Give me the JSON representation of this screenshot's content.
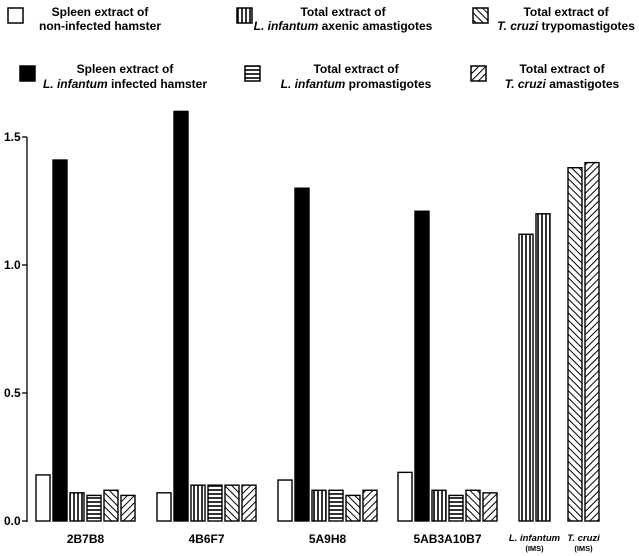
{
  "chart_data": {
    "type": "bar",
    "title": "",
    "xlabel": "",
    "ylabel": "",
    "ylim": [
      0,
      1.5
    ],
    "yticks": [
      "0.0",
      "0.5",
      "1.0",
      "1.5"
    ],
    "yticks_values": [
      0,
      0.5,
      1.0,
      1.5
    ],
    "grid": false,
    "legend_position": "top",
    "legend": [
      {
        "id": "s1",
        "pattern": "empty",
        "line1": "Spleen extract of",
        "line2_pre": "",
        "line2_italic": "",
        "line2_post": "non-infected hamster"
      },
      {
        "id": "s3",
        "pattern": "vertical",
        "line1": "Total extract of",
        "line2_pre": "",
        "line2_italic": "L. infantum",
        "line2_post": " axenic amastigotes"
      },
      {
        "id": "s5",
        "pattern": "backslash",
        "line1": "Total extract of",
        "line2_pre": "",
        "line2_italic": "T. cruzi",
        "line2_post": " trypomastigotes"
      },
      {
        "id": "s2",
        "pattern": "solid",
        "line1": "Spleen extract of",
        "line2_pre": "",
        "line2_italic": "L. infantum",
        "line2_post": " infected hamster"
      },
      {
        "id": "s4",
        "pattern": "horizontal",
        "line1": "Total extract of",
        "line2_pre": "",
        "line2_italic": "L. infantum",
        "line2_post": " promastigotes"
      },
      {
        "id": "s6",
        "pattern": "slash",
        "line1": "Total extract of",
        "line2_pre": "",
        "line2_italic": "T. cruzi",
        "line2_post": " amastigotes"
      }
    ],
    "groups": [
      {
        "label": "2B7B8",
        "bars": [
          {
            "series": "s1",
            "value": 0.18
          },
          {
            "series": "s2",
            "value": 1.41
          },
          {
            "series": "s3",
            "value": 0.11
          },
          {
            "series": "s4",
            "value": 0.1
          },
          {
            "series": "s5",
            "value": 0.12
          },
          {
            "series": "s6",
            "value": 0.1
          }
        ]
      },
      {
        "label": "4B6F7",
        "bars": [
          {
            "series": "s1",
            "value": 0.11
          },
          {
            "series": "s2",
            "value": 1.6
          },
          {
            "series": "s3",
            "value": 0.14
          },
          {
            "series": "s4",
            "value": 0.14
          },
          {
            "series": "s5",
            "value": 0.14
          },
          {
            "series": "s6",
            "value": 0.14
          }
        ]
      },
      {
        "label": "5A9H8",
        "bars": [
          {
            "series": "s1",
            "value": 0.16
          },
          {
            "series": "s2",
            "value": 1.3
          },
          {
            "series": "s3",
            "value": 0.12
          },
          {
            "series": "s4",
            "value": 0.12
          },
          {
            "series": "s5",
            "value": 0.1
          },
          {
            "series": "s6",
            "value": 0.12
          }
        ]
      },
      {
        "label": "5AB3A10B7",
        "bars": [
          {
            "series": "s1",
            "value": 0.19
          },
          {
            "series": "s2",
            "value": 1.21
          },
          {
            "series": "s3",
            "value": 0.12
          },
          {
            "series": "s4",
            "value": 0.1
          },
          {
            "series": "s5",
            "value": 0.12
          },
          {
            "series": "s6",
            "value": 0.11
          }
        ]
      },
      {
        "label": "L. infantum",
        "sublabel": "(IMS)",
        "italic": true,
        "bars": [
          {
            "series": "s3",
            "value": 1.12
          },
          {
            "series": "s3",
            "value": 1.2
          }
        ]
      },
      {
        "label": "T. cruzi",
        "sublabel": "(IMS)",
        "italic": true,
        "bars": [
          {
            "series": "s5",
            "value": 1.38
          },
          {
            "series": "s6",
            "value": 1.4
          }
        ]
      }
    ]
  }
}
